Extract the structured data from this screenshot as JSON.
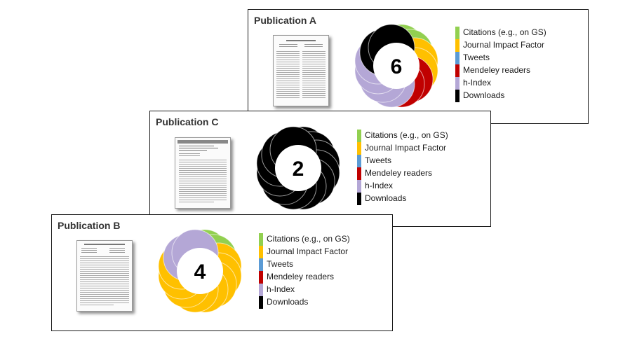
{
  "legend": {
    "items": [
      {
        "label": "Citations (e.g., on GS)",
        "color": "#92d050"
      },
      {
        "label": "Journal Impact Factor",
        "color": "#ffc000"
      },
      {
        "label": "Tweets",
        "color": "#5b9bd5"
      },
      {
        "label": "Mendeley readers",
        "color": "#c00000"
      },
      {
        "label": "h-Index",
        "color": "#b4a7d6"
      },
      {
        "label": "Downloads",
        "color": "#000000"
      }
    ]
  },
  "publications": [
    {
      "title": "Publication A",
      "score": "6",
      "petal_colors": [
        "#92d050",
        "#92d050",
        "#ffc000",
        "#ffc000",
        "#c00000",
        "#c00000",
        "#b4a7d6",
        "#b4a7d6",
        "#b4a7d6",
        "#b4a7d6",
        "#000000",
        "#000000"
      ]
    },
    {
      "title": "Publication C",
      "score": "2",
      "petal_colors": [
        "#000000",
        "#000000",
        "#000000",
        "#000000",
        "#000000",
        "#000000",
        "#000000",
        "#000000",
        "#000000",
        "#000000",
        "#000000",
        "#000000"
      ]
    },
    {
      "title": "Publication B",
      "score": "4",
      "petal_colors": [
        "#92d050",
        "#92d050",
        "#ffc000",
        "#ffc000",
        "#ffc000",
        "#ffc000",
        "#ffc000",
        "#ffc000",
        "#ffc000",
        "#ffc000",
        "#b4a7d6",
        "#b4a7d6"
      ]
    }
  ]
}
